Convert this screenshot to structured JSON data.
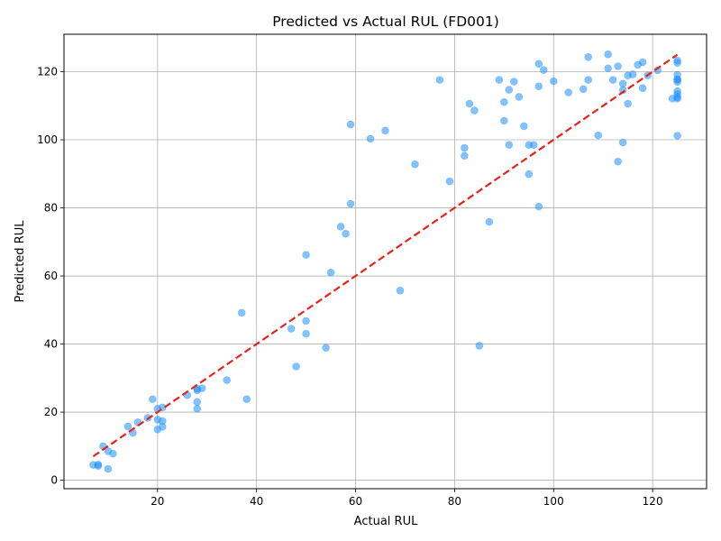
{
  "chart_data": {
    "type": "scatter",
    "title": "Predicted vs Actual RUL (FD001)",
    "xlabel": "Actual RUL",
    "ylabel": "Predicted RUL",
    "xlim": [
      1.1,
      130.9
    ],
    "ylim": [
      -2.5,
      131.0
    ],
    "xticks": [
      20,
      40,
      60,
      80,
      100,
      120
    ],
    "yticks": [
      0,
      20,
      40,
      60,
      80,
      100,
      120
    ],
    "grid": true,
    "legend": "none",
    "colors": {
      "points": "#1e90ff",
      "reference_line": "#e8221b",
      "grid": "#b0b0b0",
      "axes": "#000000"
    },
    "reference_line": {
      "style": "dashed",
      "x": [
        7,
        125
      ],
      "y": [
        7,
        125
      ]
    },
    "points": [
      [
        7,
        4.5
      ],
      [
        8,
        4.2
      ],
      [
        8,
        4.6
      ],
      [
        9,
        10.0
      ],
      [
        10,
        8.5
      ],
      [
        10,
        3.3
      ],
      [
        11,
        7.8
      ],
      [
        14,
        15.8
      ],
      [
        15,
        13.9
      ],
      [
        16,
        17.0
      ],
      [
        18,
        18.3
      ],
      [
        19,
        23.8
      ],
      [
        20,
        21.0
      ],
      [
        20,
        17.8
      ],
      [
        20,
        14.9
      ],
      [
        21,
        21.4
      ],
      [
        21,
        17.4
      ],
      [
        21,
        15.7
      ],
      [
        26,
        25.0
      ],
      [
        28,
        26.4
      ],
      [
        28,
        26.9
      ],
      [
        28,
        23.0
      ],
      [
        28,
        21.0
      ],
      [
        29,
        27.0
      ],
      [
        34,
        29.4
      ],
      [
        37,
        49.2
      ],
      [
        38,
        23.8
      ],
      [
        47,
        44.5
      ],
      [
        48,
        33.4
      ],
      [
        50,
        66.2
      ],
      [
        50,
        46.8
      ],
      [
        50,
        43.0
      ],
      [
        54,
        38.9
      ],
      [
        55,
        61.0
      ],
      [
        57,
        74.5
      ],
      [
        58,
        72.4
      ],
      [
        59,
        104.5
      ],
      [
        59,
        81.2
      ],
      [
        63,
        100.3
      ],
      [
        66,
        102.7
      ],
      [
        69,
        55.7
      ],
      [
        72,
        92.8
      ],
      [
        77,
        117.6
      ],
      [
        79,
        87.8
      ],
      [
        82,
        97.6
      ],
      [
        82,
        95.3
      ],
      [
        83,
        110.6
      ],
      [
        84,
        108.6
      ],
      [
        85,
        39.5
      ],
      [
        87,
        75.9
      ],
      [
        89,
        117.6
      ],
      [
        90,
        111.1
      ],
      [
        90,
        105.6
      ],
      [
        91,
        114.7
      ],
      [
        91,
        98.5
      ],
      [
        92,
        117.1
      ],
      [
        93,
        112.6
      ],
      [
        94,
        104.0
      ],
      [
        95,
        98.5
      ],
      [
        95,
        89.9
      ],
      [
        96,
        98.5
      ],
      [
        97,
        122.3
      ],
      [
        97,
        115.7
      ],
      [
        97,
        80.4
      ],
      [
        98,
        120.5
      ],
      [
        100,
        117.2
      ],
      [
        103,
        113.9
      ],
      [
        106,
        114.9
      ],
      [
        107,
        124.3
      ],
      [
        107,
        117.6
      ],
      [
        109,
        101.3
      ],
      [
        111,
        125.1
      ],
      [
        111,
        121.0
      ],
      [
        112,
        117.6
      ],
      [
        113,
        121.6
      ],
      [
        113,
        93.6
      ],
      [
        114,
        116.5
      ],
      [
        114,
        114.6
      ],
      [
        114,
        99.2
      ],
      [
        115,
        118.9
      ],
      [
        115,
        110.6
      ],
      [
        116,
        119.2
      ],
      [
        117,
        122.0
      ],
      [
        118,
        122.8
      ],
      [
        118,
        115.2
      ],
      [
        119,
        118.9
      ],
      [
        121,
        120.4
      ],
      [
        124,
        112.1
      ],
      [
        125,
        123.3
      ],
      [
        125,
        122.6
      ],
      [
        125,
        119.1
      ],
      [
        125,
        117.8
      ],
      [
        125,
        117.6
      ],
      [
        125,
        117.0
      ],
      [
        125,
        114.3
      ],
      [
        125,
        113.4
      ],
      [
        125,
        112.5
      ],
      [
        125,
        112.1
      ],
      [
        125,
        101.2
      ]
    ]
  }
}
